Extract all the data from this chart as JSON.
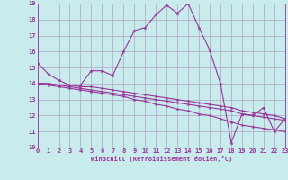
{
  "xlabel": "Windchill (Refroidissement éolien,°C)",
  "bg_color": "#c8ecec",
  "grid_color": "#b0a0c8",
  "line_color": "#993399",
  "xmin": 0,
  "xmax": 23,
  "ymin": 10,
  "ymax": 19,
  "hours": [
    0,
    1,
    2,
    3,
    4,
    5,
    6,
    7,
    8,
    9,
    10,
    11,
    12,
    13,
    14,
    15,
    16,
    17,
    18,
    19,
    20,
    21,
    22,
    23
  ],
  "line1": [
    15.3,
    14.6,
    14.2,
    13.9,
    13.9,
    14.8,
    14.8,
    14.5,
    16.0,
    17.3,
    17.5,
    18.3,
    18.9,
    18.4,
    19.0,
    17.5,
    16.1,
    14.0,
    10.3,
    12.1,
    12.0,
    12.5,
    11.0,
    11.8
  ],
  "line2": [
    14.0,
    14.0,
    13.9,
    13.9,
    13.8,
    13.8,
    13.7,
    13.6,
    13.5,
    13.4,
    13.3,
    13.2,
    13.1,
    13.0,
    12.9,
    12.8,
    12.7,
    12.6,
    12.5,
    12.3,
    12.2,
    12.1,
    12.0,
    11.8
  ],
  "line3": [
    14.0,
    14.0,
    13.9,
    13.8,
    13.7,
    13.6,
    13.5,
    13.4,
    13.3,
    13.2,
    13.1,
    13.0,
    12.9,
    12.8,
    12.7,
    12.6,
    12.5,
    12.4,
    12.3,
    12.1,
    12.0,
    11.9,
    11.8,
    11.7
  ],
  "line4": [
    14.0,
    13.9,
    13.8,
    13.7,
    13.6,
    13.5,
    13.4,
    13.3,
    13.2,
    13.0,
    12.9,
    12.7,
    12.6,
    12.4,
    12.3,
    12.1,
    12.0,
    11.8,
    11.6,
    11.4,
    11.3,
    11.2,
    11.1,
    11.0
  ]
}
